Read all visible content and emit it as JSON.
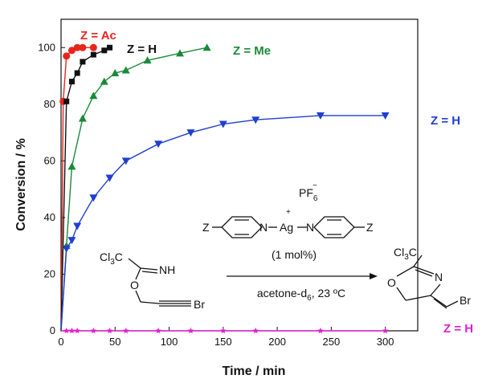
{
  "chart_data": {
    "type": "scatter",
    "xlabel": "Time / min",
    "ylabel": "Conversion / %",
    "xlim": [
      0,
      330
    ],
    "ylim": [
      0,
      110
    ],
    "xticks": [
      0,
      50,
      100,
      150,
      200,
      250,
      300
    ],
    "yticks": [
      0,
      20,
      40,
      60,
      80,
      100
    ],
    "grid": false,
    "series": [
      {
        "name": "Z = Ac",
        "color": "#e8251c",
        "marker": "circle",
        "x": [
          0,
          2,
          5,
          10,
          15,
          20,
          30
        ],
        "y": [
          0,
          81,
          97,
          99,
          100,
          100,
          100
        ]
      },
      {
        "name": "Z = H",
        "color": "#111111",
        "marker": "square",
        "x": [
          0,
          5,
          10,
          15,
          20,
          30,
          40,
          45
        ],
        "y": [
          0,
          81,
          88,
          91,
          95,
          97.5,
          99,
          100
        ]
      },
      {
        "name": "Z = Me",
        "color": "#1a8a3a",
        "marker": "triangle-up",
        "x": [
          0,
          5,
          10,
          20,
          30,
          40,
          50,
          60,
          80,
          110,
          135
        ],
        "y": [
          0,
          30,
          58,
          75,
          83,
          88,
          91,
          92,
          95.5,
          98,
          100
        ]
      },
      {
        "name": "Z = H",
        "color": "#1f3fd1",
        "marker": "triangle-down",
        "x": [
          0,
          5,
          10,
          15,
          30,
          45,
          60,
          90,
          120,
          150,
          180,
          240,
          300
        ],
        "y": [
          0,
          29,
          32,
          37,
          47,
          54,
          60,
          66,
          70,
          73,
          74.5,
          76,
          76
        ]
      },
      {
        "name": "Z = H",
        "color": "#e020d0",
        "marker": "star",
        "x": [
          0,
          5,
          10,
          15,
          30,
          45,
          60,
          90,
          120,
          150,
          180,
          240,
          300
        ],
        "y": [
          0,
          0,
          0,
          0,
          0,
          0,
          0,
          0,
          0,
          0,
          0,
          0,
          0
        ]
      }
    ]
  },
  "scheme": {
    "counterion": "PF",
    "counterion_sub": "6",
    "counterion_sup": "−",
    "cation_charge": "+",
    "z_left": "Z",
    "z_right": "Z",
    "n_left": "N",
    "n_right": "N",
    "metal": "Ag",
    "loading": "(1 mol%)",
    "substrate_cl3c": "Cl",
    "substrate_cl3c_sub": "3",
    "substrate_c": "C",
    "substrate_nh": "NH",
    "substrate_o": "O",
    "substrate_br": "Br",
    "conditions_solvent": "acetone-d",
    "conditions_solvent_sub": "6",
    "conditions_temp": ", 23 ºC",
    "product_cl3c": "Cl",
    "product_cl3c_sub": "3",
    "product_c": "C",
    "product_o": "O",
    "product_n": "N",
    "product_br": "Br"
  }
}
